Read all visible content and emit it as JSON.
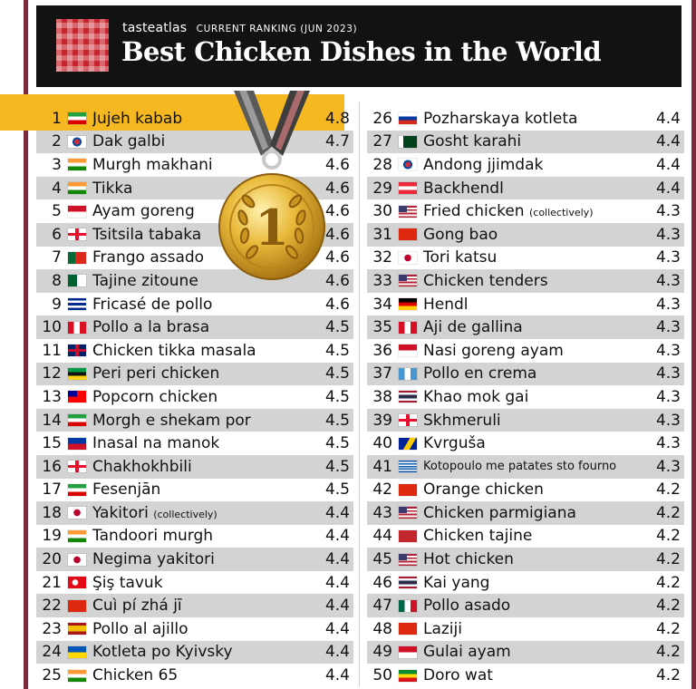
{
  "header": {
    "brand": "tasteatlas",
    "ranking_label": "CURRENT RANKING (JUN 2023)",
    "title": "Best Chicken Dishes in the World"
  },
  "medal_label": "1",
  "left_column": [
    {
      "rank": "1",
      "flag": "iran-flag",
      "name": "Jujeh kabab",
      "score": "4.8"
    },
    {
      "rank": "2",
      "flag": "korea-flag",
      "name": "Dak galbi",
      "score": "4.7"
    },
    {
      "rank": "3",
      "flag": "india-flag",
      "name": "Murgh makhani",
      "score": "4.6"
    },
    {
      "rank": "4",
      "flag": "india-flag",
      "name": "Tikka",
      "score": "4.6"
    },
    {
      "rank": "5",
      "flag": "indonesia-flag",
      "name": "Ayam goreng",
      "score": "4.6"
    },
    {
      "rank": "6",
      "flag": "georgia-flag",
      "name": "Tsitsila tabaka",
      "score": "4.6"
    },
    {
      "rank": "7",
      "flag": "portugal-flag",
      "name": "Frango assado",
      "score": "4.6"
    },
    {
      "rank": "8",
      "flag": "algeria-flag",
      "name": "Tajine zitoune",
      "score": "4.6"
    },
    {
      "rank": "9",
      "flag": "cuba-flag",
      "name": "Fricasé de pollo",
      "score": "4.6"
    },
    {
      "rank": "10",
      "flag": "peru-flag",
      "name": "Pollo a la brasa",
      "score": "4.5"
    },
    {
      "rank": "11",
      "flag": "uk-flag",
      "name": "Chicken tikka masala",
      "score": "4.5"
    },
    {
      "rank": "12",
      "flag": "mozambique-flag",
      "name": "Peri peri chicken",
      "score": "4.5"
    },
    {
      "rank": "13",
      "flag": "taiwan-flag",
      "name": "Popcorn chicken",
      "score": "4.5"
    },
    {
      "rank": "14",
      "flag": "iran-flag",
      "name": "Morgh e shekam por",
      "score": "4.5"
    },
    {
      "rank": "15",
      "flag": "philippines-flag",
      "name": "Inasal na manok",
      "score": "4.5"
    },
    {
      "rank": "16",
      "flag": "georgia-flag",
      "name": "Chakhokhbili",
      "score": "4.5"
    },
    {
      "rank": "17",
      "flag": "iran-flag",
      "name": "Fesenjān",
      "score": "4.5"
    },
    {
      "rank": "18",
      "flag": "japan-flag",
      "name": "Yakitori",
      "note": "(collectively)",
      "score": "4.4"
    },
    {
      "rank": "19",
      "flag": "india-flag",
      "name": "Tandoori murgh",
      "score": "4.4"
    },
    {
      "rank": "20",
      "flag": "japan-flag",
      "name": "Negima yakitori",
      "score": "4.4"
    },
    {
      "rank": "21",
      "flag": "turkey-flag",
      "name": "Şiş tavuk",
      "score": "4.4"
    },
    {
      "rank": "22",
      "flag": "china-flag",
      "name": "Cuì pí zhá jī",
      "score": "4.4"
    },
    {
      "rank": "23",
      "flag": "spain-flag",
      "name": "Pollo al ajillo",
      "score": "4.4"
    },
    {
      "rank": "24",
      "flag": "ukraine-flag",
      "name": "Kotleta po Kyivsky",
      "score": "4.4"
    },
    {
      "rank": "25",
      "flag": "india-flag",
      "name": "Chicken 65",
      "score": "4.4"
    }
  ],
  "right_column": [
    {
      "rank": "26",
      "flag": "russia-flag",
      "name": "Pozharskaya kotleta",
      "score": "4.4"
    },
    {
      "rank": "27",
      "flag": "pakistan-flag",
      "name": "Gosht karahi",
      "score": "4.4"
    },
    {
      "rank": "28",
      "flag": "korea-flag",
      "name": "Andong jjimdak",
      "score": "4.4"
    },
    {
      "rank": "29",
      "flag": "austria-flag",
      "name": "Backhendl",
      "score": "4.4"
    },
    {
      "rank": "30",
      "flag": "usa-flag",
      "name": "Fried chicken",
      "note": "(collectively)",
      "score": "4.3"
    },
    {
      "rank": "31",
      "flag": "china-flag",
      "name": "Gong bao",
      "score": "4.3"
    },
    {
      "rank": "32",
      "flag": "japan-flag",
      "name": "Tori katsu",
      "score": "4.3"
    },
    {
      "rank": "33",
      "flag": "usa-flag",
      "name": "Chicken tenders",
      "score": "4.3"
    },
    {
      "rank": "34",
      "flag": "germany-flag",
      "name": "Hendl",
      "score": "4.3"
    },
    {
      "rank": "35",
      "flag": "peru-flag",
      "name": "Aji de gallina",
      "score": "4.3"
    },
    {
      "rank": "36",
      "flag": "indonesia-flag",
      "name": "Nasi goreng ayam",
      "score": "4.3"
    },
    {
      "rank": "37",
      "flag": "guatemala-flag",
      "name": "Pollo en crema",
      "score": "4.3"
    },
    {
      "rank": "38",
      "flag": "thailand-flag",
      "name": "Khao mok gai",
      "score": "4.3"
    },
    {
      "rank": "39",
      "flag": "georgia-flag",
      "name": "Skhmeruli",
      "score": "4.3"
    },
    {
      "rank": "40",
      "flag": "bosnia-flag",
      "name": "Kvrguša",
      "score": "4.3"
    },
    {
      "rank": "41",
      "flag": "greece-flag",
      "name": "Kotopoulo me patates sto fourno",
      "small": true,
      "score": "4.3"
    },
    {
      "rank": "42",
      "flag": "china-flag",
      "name": "Orange chicken",
      "score": "4.2"
    },
    {
      "rank": "43",
      "flag": "usa-flag",
      "name": "Chicken parmigiana",
      "score": "4.2"
    },
    {
      "rank": "44",
      "flag": "morocco-flag",
      "name": "Chicken tajine",
      "score": "4.2"
    },
    {
      "rank": "45",
      "flag": "usa-flag",
      "name": "Hot chicken",
      "score": "4.2"
    },
    {
      "rank": "46",
      "flag": "thailand-flag",
      "name": "Kai yang",
      "score": "4.2"
    },
    {
      "rank": "47",
      "flag": "mexico-flag",
      "name": "Pollo asado",
      "score": "4.2"
    },
    {
      "rank": "48",
      "flag": "china-flag",
      "name": "Laziji",
      "score": "4.2"
    },
    {
      "rank": "49",
      "flag": "indonesia-flag",
      "name": "Gulai ayam",
      "score": "4.2"
    },
    {
      "rank": "50",
      "flag": "ethiopia-flag",
      "name": "Doro wat",
      "score": "4.2"
    }
  ],
  "colors": {
    "header_bg": "#121212",
    "highlight": "#f5b820",
    "row_shade": "#d3d3d3",
    "frame": "#7a2a3a",
    "logo_red": "#c8262e",
    "medal_gold": "#d9a521"
  }
}
